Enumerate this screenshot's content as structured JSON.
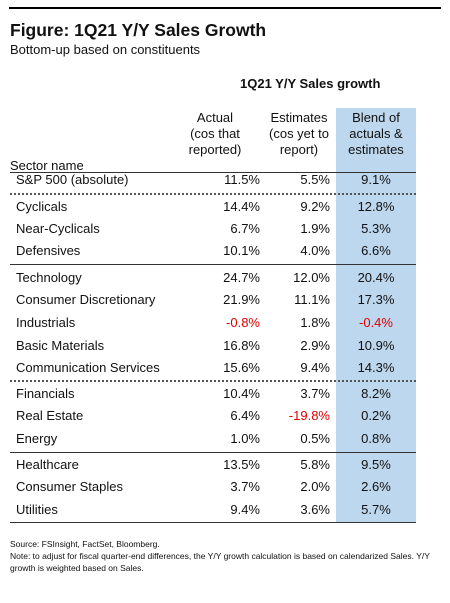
{
  "figure": {
    "title": "Figure: 1Q21 Y/Y Sales Growth",
    "subtitle": "Bottom-up based on constituents",
    "group_header": "1Q21 Y/Y Sales growth",
    "columns": {
      "sector": "Sector name",
      "actual": [
        "Actual",
        "(cos that",
        "reported)"
      ],
      "estimates": [
        "Estimates",
        "(cos yet to",
        "report)"
      ],
      "blend": [
        "Blend of",
        "actuals &",
        "estimates"
      ]
    },
    "rows": [
      {
        "name": "S&P 500 (absolute)",
        "actual": "11.5%",
        "est": "5.5%",
        "blend": "9.1%"
      },
      {
        "name": "Cyclicals",
        "actual": "14.4%",
        "est": "9.2%",
        "blend": "12.8%"
      },
      {
        "name": "Near-Cyclicals",
        "actual": "6.7%",
        "est": "1.9%",
        "blend": "5.3%"
      },
      {
        "name": "Defensives",
        "actual": "10.1%",
        "est": "4.0%",
        "blend": "6.6%"
      },
      {
        "name": "Technology",
        "actual": "24.7%",
        "est": "12.0%",
        "blend": "20.4%"
      },
      {
        "name": "Consumer Discretionary",
        "actual": "21.9%",
        "est": "11.1%",
        "blend": "17.3%"
      },
      {
        "name": "Industrials",
        "actual": "-0.8%",
        "est": "1.8%",
        "blend": "-0.4%"
      },
      {
        "name": "Basic Materials",
        "actual": "16.8%",
        "est": "2.9%",
        "blend": "10.9%"
      },
      {
        "name": "Communication Services",
        "actual": "15.6%",
        "est": "9.4%",
        "blend": "14.3%"
      },
      {
        "name": "Financials",
        "actual": "10.4%",
        "est": "3.7%",
        "blend": "8.2%"
      },
      {
        "name": "Real Estate",
        "actual": "6.4%",
        "est": "-19.8%",
        "blend": "0.2%"
      },
      {
        "name": "Energy",
        "actual": "1.0%",
        "est": "0.5%",
        "blend": "0.8%"
      },
      {
        "name": "Healthcare",
        "actual": "13.5%",
        "est": "5.8%",
        "blend": "9.5%"
      },
      {
        "name": "Consumer Staples",
        "actual": "3.7%",
        "est": "2.0%",
        "blend": "2.6%"
      },
      {
        "name": "Utilities",
        "actual": "9.4%",
        "est": "3.6%",
        "blend": "5.7%"
      }
    ],
    "source": "Source: FSInsight, FactSet, Bloomberg.",
    "note": "Note: to adjust for fiscal quarter-end differences, the Y/Y growth calculation is based on calendarized Sales. Y/Y growth is weighted based on Sales.",
    "colors": {
      "blend_highlight": "#bdd7ee",
      "negative": "#e00000"
    }
  }
}
